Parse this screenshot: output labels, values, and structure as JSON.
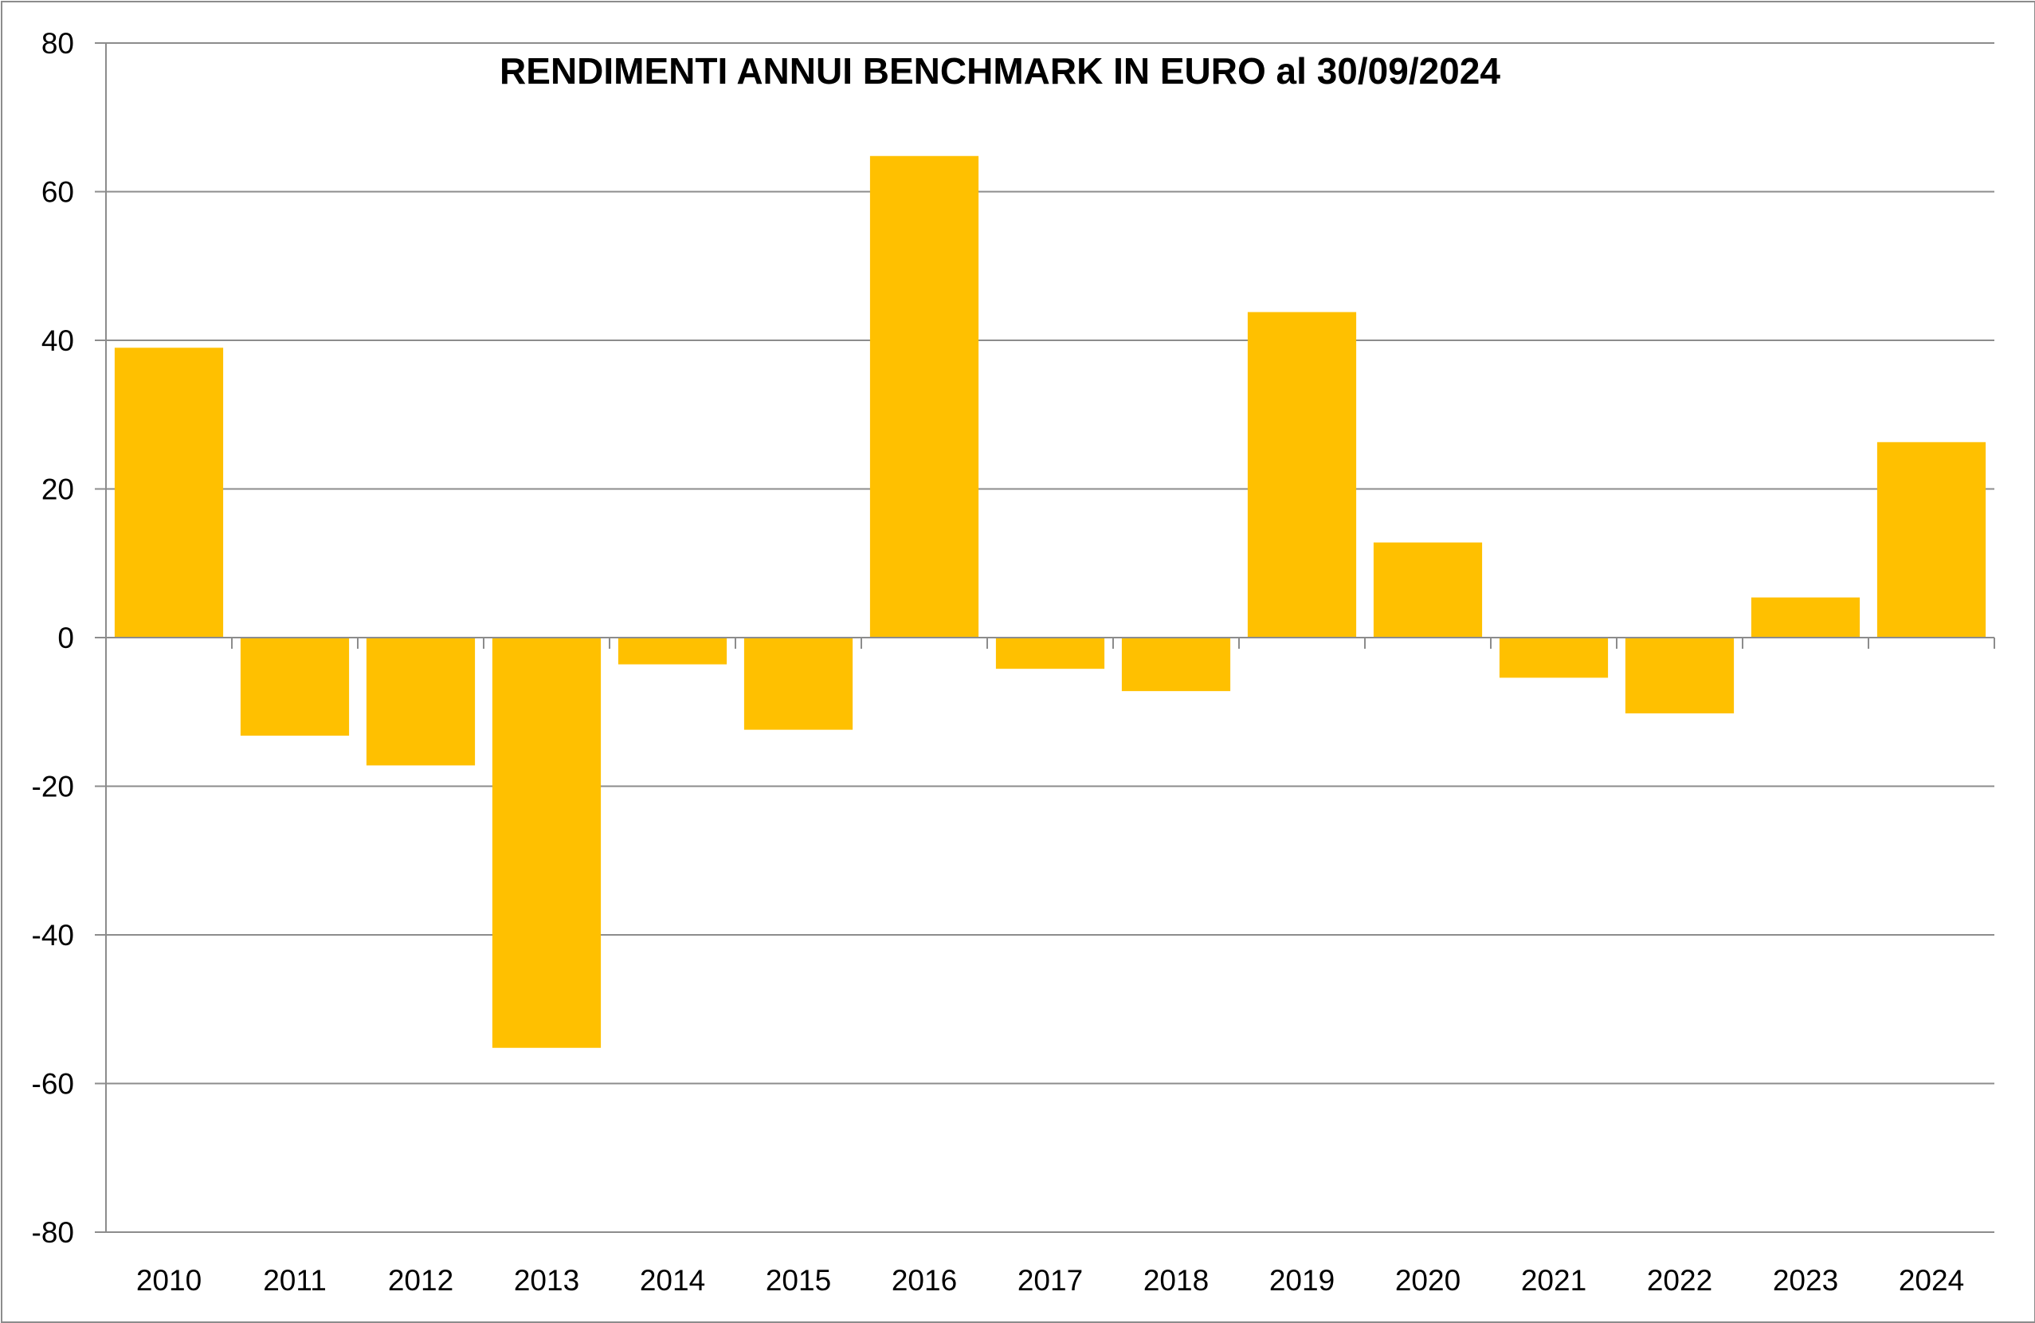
{
  "chart_data": {
    "type": "bar",
    "title": "RENDIMENTI ANNUI BENCHMARK IN EURO al 30/09/2024",
    "xlabel": "",
    "ylabel": "",
    "categories": [
      "2010",
      "2011",
      "2012",
      "2013",
      "2014",
      "2015",
      "2016",
      "2017",
      "2018",
      "2019",
      "2020",
      "2021",
      "2022",
      "2023",
      "2024"
    ],
    "values": [
      39,
      -13.2,
      -17.2,
      -55.2,
      -3.6,
      -12.4,
      64.8,
      -4.2,
      -7.2,
      43.8,
      12.8,
      -5.4,
      -10.2,
      5.4,
      26.3
    ],
    "ylim": [
      -80,
      80
    ],
    "yticks": [
      "80",
      "60",
      "40",
      "20",
      "0",
      "-20",
      "-40",
      "-60",
      "-80"
    ],
    "ytick_values": [
      80,
      60,
      40,
      20,
      0,
      -20,
      -40,
      -60,
      -80
    ],
    "grid": true,
    "legend": "none",
    "colors": {
      "bar": "#FFC000",
      "grid": "#8c8c8c",
      "axis": "#8c8c8c",
      "frame": "#8c8c8c"
    }
  }
}
